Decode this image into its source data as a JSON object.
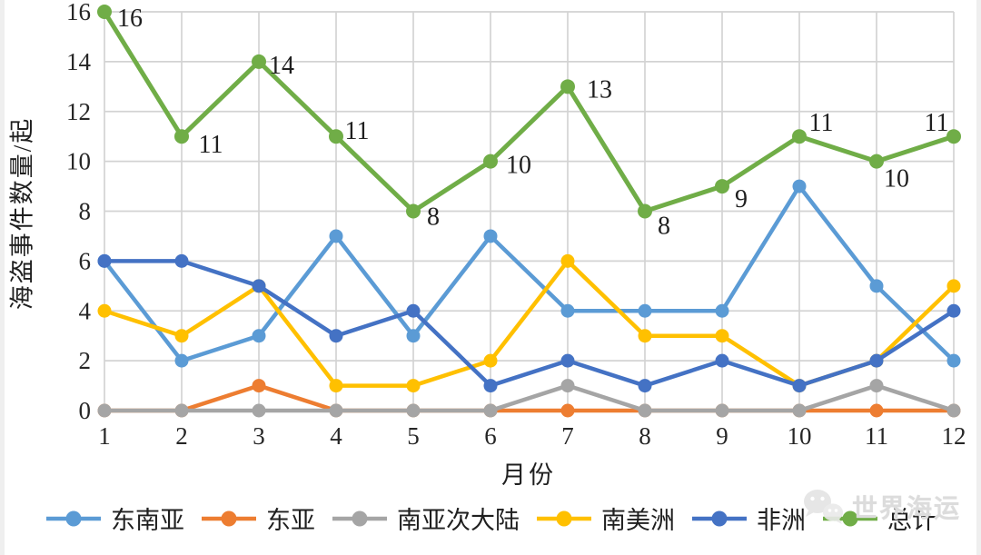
{
  "watermark": {
    "text": "世界海运",
    "color": "#dcdcdc"
  },
  "chart_data": {
    "type": "line",
    "title": "",
    "xlabel": "月份",
    "ylabel": "海盗事件数量/起",
    "x": [
      1,
      2,
      3,
      4,
      5,
      6,
      7,
      8,
      9,
      10,
      11,
      12
    ],
    "ylim": [
      0,
      16
    ],
    "ytick_step": 2,
    "grid": true,
    "legend_position": "bottom",
    "series": [
      {
        "name": "东南亚",
        "color": "#5B9BD5",
        "values": [
          6,
          2,
          3,
          7,
          3,
          7,
          4,
          4,
          4,
          9,
          5,
          2
        ]
      },
      {
        "name": "东亚",
        "color": "#ED7D31",
        "values": [
          0,
          0,
          1,
          0,
          0,
          0,
          0,
          0,
          0,
          0,
          0,
          0
        ]
      },
      {
        "name": "南亚次大陆",
        "color": "#A5A5A5",
        "values": [
          0,
          0,
          0,
          0,
          0,
          0,
          1,
          0,
          0,
          0,
          1,
          0
        ]
      },
      {
        "name": "南美洲",
        "color": "#FFC000",
        "values": [
          4,
          3,
          5,
          1,
          1,
          2,
          6,
          3,
          3,
          1,
          2,
          5
        ]
      },
      {
        "name": "非洲",
        "color": "#4472C4",
        "values": [
          6,
          6,
          5,
          3,
          4,
          1,
          2,
          1,
          2,
          1,
          2,
          4
        ]
      },
      {
        "name": "总计",
        "color": "#70AD47",
        "values": [
          16,
          11,
          14,
          11,
          8,
          10,
          13,
          8,
          9,
          11,
          10,
          11
        ],
        "data_labels": true,
        "label_offsets": [
          [
            28,
            6
          ],
          [
            32,
            8
          ],
          [
            25,
            3
          ],
          [
            23,
            -7
          ],
          [
            22,
            5
          ],
          [
            31,
            3
          ],
          [
            35,
            2
          ],
          [
            21,
            15
          ],
          [
            21,
            13
          ],
          [
            24,
            -16
          ],
          [
            22,
            18
          ],
          [
            -19,
            -16
          ]
        ]
      }
    ]
  }
}
